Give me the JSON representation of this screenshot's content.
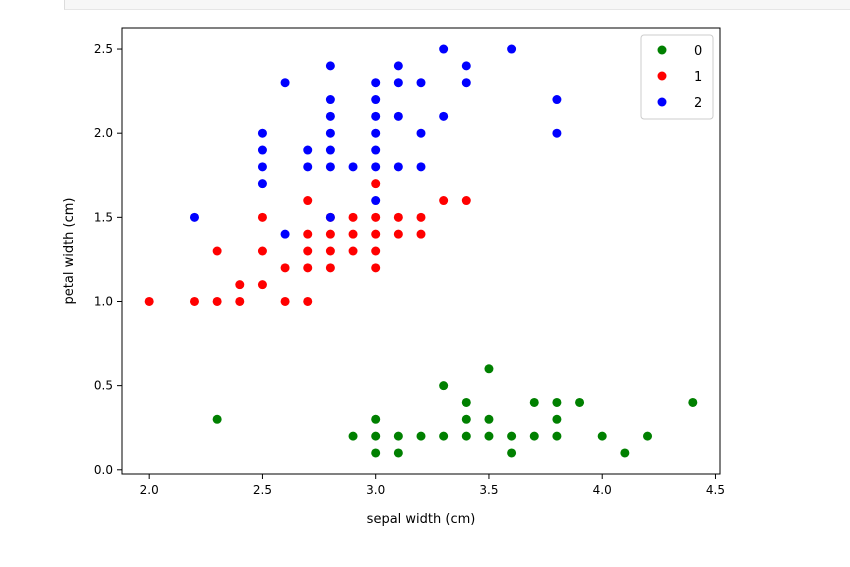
{
  "chart_data": {
    "type": "scatter",
    "xlabel": "sepal width (cm)",
    "ylabel": "petal width (cm)",
    "xlim": [
      1.88,
      4.52
    ],
    "ylim": [
      -0.025,
      2.625
    ],
    "xticks": [
      "2.0",
      "2.5",
      "3.0",
      "3.5",
      "4.0",
      "4.5"
    ],
    "yticks": [
      "0.0",
      "0.5",
      "1.0",
      "1.5",
      "2.0",
      "2.5"
    ],
    "legend_position": "top-right",
    "grid": false,
    "series": [
      {
        "name": "0",
        "color": "#008000",
        "points": [
          [
            3.0,
            0.1
          ],
          [
            3.1,
            0.1
          ],
          [
            3.6,
            0.1
          ],
          [
            4.1,
            0.1
          ],
          [
            2.9,
            0.2
          ],
          [
            3.0,
            0.2
          ],
          [
            3.1,
            0.2
          ],
          [
            3.2,
            0.2
          ],
          [
            3.3,
            0.2
          ],
          [
            3.4,
            0.2
          ],
          [
            3.5,
            0.2
          ],
          [
            3.6,
            0.2
          ],
          [
            3.7,
            0.2
          ],
          [
            3.8,
            0.2
          ],
          [
            4.0,
            0.2
          ],
          [
            4.2,
            0.2
          ],
          [
            2.3,
            0.3
          ],
          [
            3.0,
            0.3
          ],
          [
            3.4,
            0.3
          ],
          [
            3.5,
            0.3
          ],
          [
            3.8,
            0.3
          ],
          [
            3.4,
            0.4
          ],
          [
            3.7,
            0.4
          ],
          [
            3.8,
            0.4
          ],
          [
            3.9,
            0.4
          ],
          [
            4.4,
            0.4
          ],
          [
            3.3,
            0.5
          ],
          [
            3.5,
            0.6
          ]
        ]
      },
      {
        "name": "1",
        "color": "#ff0000",
        "points": [
          [
            2.0,
            1.0
          ],
          [
            2.2,
            1.0
          ],
          [
            2.3,
            1.0
          ],
          [
            2.4,
            1.0
          ],
          [
            2.6,
            1.0
          ],
          [
            2.7,
            1.0
          ],
          [
            2.4,
            1.1
          ],
          [
            2.5,
            1.1
          ],
          [
            2.6,
            1.2
          ],
          [
            2.7,
            1.2
          ],
          [
            2.8,
            1.2
          ],
          [
            3.0,
            1.2
          ],
          [
            2.3,
            1.3
          ],
          [
            2.5,
            1.3
          ],
          [
            2.7,
            1.3
          ],
          [
            2.8,
            1.3
          ],
          [
            2.9,
            1.3
          ],
          [
            3.0,
            1.3
          ],
          [
            2.7,
            1.4
          ],
          [
            2.8,
            1.4
          ],
          [
            2.9,
            1.4
          ],
          [
            3.0,
            1.4
          ],
          [
            3.1,
            1.4
          ],
          [
            3.2,
            1.4
          ],
          [
            2.5,
            1.5
          ],
          [
            2.8,
            1.5
          ],
          [
            2.9,
            1.5
          ],
          [
            3.0,
            1.5
          ],
          [
            3.1,
            1.5
          ],
          [
            3.2,
            1.5
          ],
          [
            2.7,
            1.6
          ],
          [
            3.3,
            1.6
          ],
          [
            3.4,
            1.6
          ],
          [
            3.0,
            1.7
          ]
        ]
      },
      {
        "name": "2",
        "color": "#0000ff",
        "points": [
          [
            2.6,
            1.4
          ],
          [
            2.2,
            1.5
          ],
          [
            2.8,
            1.5
          ],
          [
            3.0,
            1.6
          ],
          [
            2.5,
            1.7
          ],
          [
            2.5,
            1.8
          ],
          [
            2.7,
            1.8
          ],
          [
            2.8,
            1.8
          ],
          [
            2.9,
            1.8
          ],
          [
            3.0,
            1.8
          ],
          [
            3.1,
            1.8
          ],
          [
            3.2,
            1.8
          ],
          [
            2.5,
            1.9
          ],
          [
            2.7,
            1.9
          ],
          [
            2.8,
            1.9
          ],
          [
            3.0,
            1.9
          ],
          [
            2.5,
            2.0
          ],
          [
            2.8,
            2.0
          ],
          [
            3.0,
            2.0
          ],
          [
            3.2,
            2.0
          ],
          [
            3.8,
            2.0
          ],
          [
            2.8,
            2.1
          ],
          [
            3.0,
            2.1
          ],
          [
            3.1,
            2.1
          ],
          [
            3.3,
            2.1
          ],
          [
            2.8,
            2.2
          ],
          [
            3.0,
            2.2
          ],
          [
            3.8,
            2.2
          ],
          [
            2.6,
            2.3
          ],
          [
            3.0,
            2.3
          ],
          [
            3.1,
            2.3
          ],
          [
            3.2,
            2.3
          ],
          [
            3.4,
            2.3
          ],
          [
            2.8,
            2.4
          ],
          [
            3.1,
            2.4
          ],
          [
            3.4,
            2.4
          ],
          [
            3.3,
            2.5
          ],
          [
            3.6,
            2.5
          ]
        ]
      }
    ]
  }
}
